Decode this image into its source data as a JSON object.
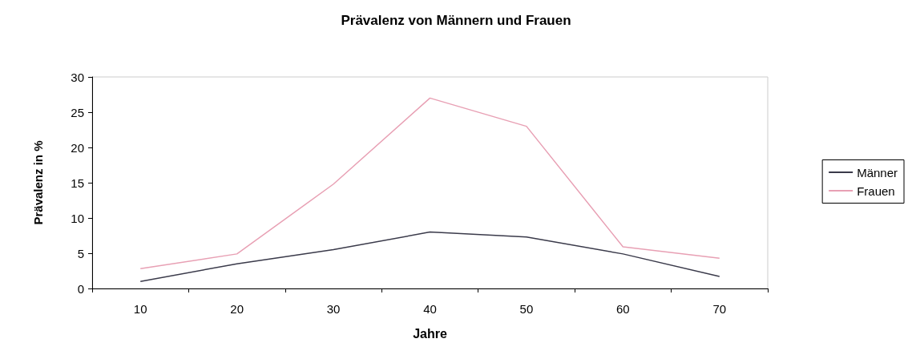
{
  "chart_data": {
    "type": "line",
    "title": "Prävalenz von Männern und Frauen",
    "xlabel": "Jahre",
    "ylabel": "Prävalenz in %",
    "categories": [
      "10",
      "20",
      "30",
      "40",
      "50",
      "60",
      "70"
    ],
    "series": [
      {
        "name": "Männer",
        "color": "#3a3a4a",
        "values": [
          1,
          3.5,
          5.5,
          8,
          7.3,
          4.9,
          1.7
        ]
      },
      {
        "name": "Frauen",
        "color": "#e8a0b4",
        "values": [
          2.8,
          4.9,
          14.8,
          27,
          23,
          5.9,
          4.3
        ]
      }
    ],
    "ylim": [
      0,
      30
    ],
    "yticks": [
      0,
      5,
      10,
      15,
      20,
      25,
      30
    ],
    "grid": false,
    "legend": "right",
    "marker": "none",
    "line_style": "solid"
  }
}
